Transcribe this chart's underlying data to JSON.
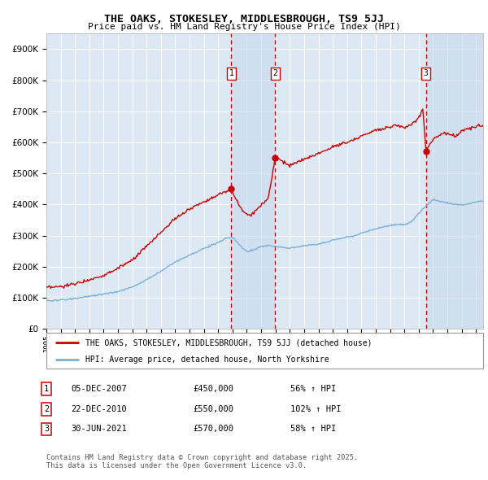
{
  "title": "THE OAKS, STOKESLEY, MIDDLESBROUGH, TS9 5JJ",
  "subtitle": "Price paid vs. HM Land Registry's House Price Index (HPI)",
  "background_color": "#ffffff",
  "plot_bg_color": "#dce9f5",
  "grid_color": "#ffffff",
  "red_line_color": "#cc0000",
  "blue_line_color": "#7bafd4",
  "dashed_line_color": "#cc0000",
  "sale_shade_color": "#c8d9ed",
  "ylim": [
    0,
    950000
  ],
  "yticks": [
    0,
    100000,
    200000,
    300000,
    400000,
    500000,
    600000,
    700000,
    800000,
    900000
  ],
  "ytick_labels": [
    "£0",
    "£100K",
    "£200K",
    "£300K",
    "£400K",
    "£500K",
    "£600K",
    "£700K",
    "£800K",
    "£900K"
  ],
  "sales": [
    {
      "label": "1",
      "date_str": "05-DEC-2007",
      "price": 450000,
      "pct": "56%",
      "x": 2007.92
    },
    {
      "label": "2",
      "date_str": "22-DEC-2010",
      "price": 550000,
      "pct": "102%",
      "x": 2010.97
    },
    {
      "label": "3",
      "date_str": "30-JUN-2021",
      "price": 570000,
      "pct": "58%",
      "x": 2021.5
    }
  ],
  "legend_red_label": "THE OAKS, STOKESLEY, MIDDLESBROUGH, TS9 5JJ (detached house)",
  "legend_blue_label": "HPI: Average price, detached house, North Yorkshire",
  "footnote": "Contains HM Land Registry data © Crown copyright and database right 2025.\nThis data is licensed under the Open Government Licence v3.0.",
  "xmin": 1995.0,
  "xmax": 2025.5,
  "xticks": [
    1995,
    1996,
    1997,
    1998,
    1999,
    2000,
    2001,
    2002,
    2003,
    2004,
    2005,
    2006,
    2007,
    2008,
    2009,
    2010,
    2011,
    2012,
    2013,
    2014,
    2015,
    2016,
    2017,
    2018,
    2019,
    2020,
    2021,
    2022,
    2023,
    2024,
    2025
  ],
  "red_knots": [
    [
      1995.0,
      132000
    ],
    [
      1996.0,
      135000
    ],
    [
      1997.0,
      145000
    ],
    [
      1998.0,
      158000
    ],
    [
      1999.0,
      172000
    ],
    [
      2000.0,
      195000
    ],
    [
      2001.0,
      220000
    ],
    [
      2002.0,
      265000
    ],
    [
      2003.0,
      310000
    ],
    [
      2004.0,
      355000
    ],
    [
      2005.0,
      385000
    ],
    [
      2006.0,
      410000
    ],
    [
      2007.0,
      430000
    ],
    [
      2007.92,
      450000
    ],
    [
      2008.3,
      410000
    ],
    [
      2008.8,
      375000
    ],
    [
      2009.3,
      365000
    ],
    [
      2009.8,
      390000
    ],
    [
      2010.5,
      420000
    ],
    [
      2010.97,
      550000
    ],
    [
      2011.3,
      545000
    ],
    [
      2011.8,
      530000
    ],
    [
      2012.0,
      525000
    ],
    [
      2012.5,
      535000
    ],
    [
      2013.0,
      545000
    ],
    [
      2013.5,
      555000
    ],
    [
      2014.0,
      565000
    ],
    [
      2014.5,
      575000
    ],
    [
      2015.0,
      585000
    ],
    [
      2015.5,
      595000
    ],
    [
      2016.0,
      600000
    ],
    [
      2016.5,
      610000
    ],
    [
      2017.0,
      620000
    ],
    [
      2017.5,
      630000
    ],
    [
      2018.0,
      640000
    ],
    [
      2018.5,
      645000
    ],
    [
      2019.0,
      650000
    ],
    [
      2019.5,
      655000
    ],
    [
      2020.0,
      648000
    ],
    [
      2020.5,
      655000
    ],
    [
      2021.0,
      680000
    ],
    [
      2021.3,
      710000
    ],
    [
      2021.5,
      570000
    ],
    [
      2021.8,
      595000
    ],
    [
      2022.0,
      610000
    ],
    [
      2022.5,
      625000
    ],
    [
      2023.0,
      630000
    ],
    [
      2023.5,
      620000
    ],
    [
      2024.0,
      635000
    ],
    [
      2024.5,
      645000
    ],
    [
      2025.0,
      650000
    ],
    [
      2025.5,
      655000
    ]
  ],
  "blue_knots": [
    [
      1995.0,
      90000
    ],
    [
      1996.0,
      93000
    ],
    [
      1997.0,
      98000
    ],
    [
      1998.0,
      105000
    ],
    [
      1999.0,
      112000
    ],
    [
      2000.0,
      120000
    ],
    [
      2001.0,
      135000
    ],
    [
      2002.0,
      158000
    ],
    [
      2003.0,
      185000
    ],
    [
      2004.0,
      215000
    ],
    [
      2005.0,
      238000
    ],
    [
      2006.0,
      258000
    ],
    [
      2007.0,
      278000
    ],
    [
      2007.5,
      290000
    ],
    [
      2008.0,
      295000
    ],
    [
      2008.5,
      270000
    ],
    [
      2009.0,
      248000
    ],
    [
      2009.5,
      255000
    ],
    [
      2010.0,
      265000
    ],
    [
      2010.5,
      268000
    ],
    [
      2011.0,
      265000
    ],
    [
      2011.5,
      262000
    ],
    [
      2012.0,
      260000
    ],
    [
      2012.5,
      263000
    ],
    [
      2013.0,
      268000
    ],
    [
      2013.5,
      270000
    ],
    [
      2014.0,
      272000
    ],
    [
      2014.5,
      278000
    ],
    [
      2015.0,
      285000
    ],
    [
      2015.5,
      290000
    ],
    [
      2016.0,
      295000
    ],
    [
      2016.5,
      300000
    ],
    [
      2017.0,
      308000
    ],
    [
      2017.5,
      315000
    ],
    [
      2018.0,
      322000
    ],
    [
      2018.5,
      328000
    ],
    [
      2019.0,
      332000
    ],
    [
      2019.5,
      336000
    ],
    [
      2020.0,
      335000
    ],
    [
      2020.5,
      345000
    ],
    [
      2021.0,
      370000
    ],
    [
      2021.5,
      395000
    ],
    [
      2022.0,
      415000
    ],
    [
      2022.5,
      410000
    ],
    [
      2023.0,
      405000
    ],
    [
      2023.5,
      400000
    ],
    [
      2024.0,
      398000
    ],
    [
      2024.5,
      402000
    ],
    [
      2025.0,
      408000
    ],
    [
      2025.5,
      412000
    ]
  ]
}
